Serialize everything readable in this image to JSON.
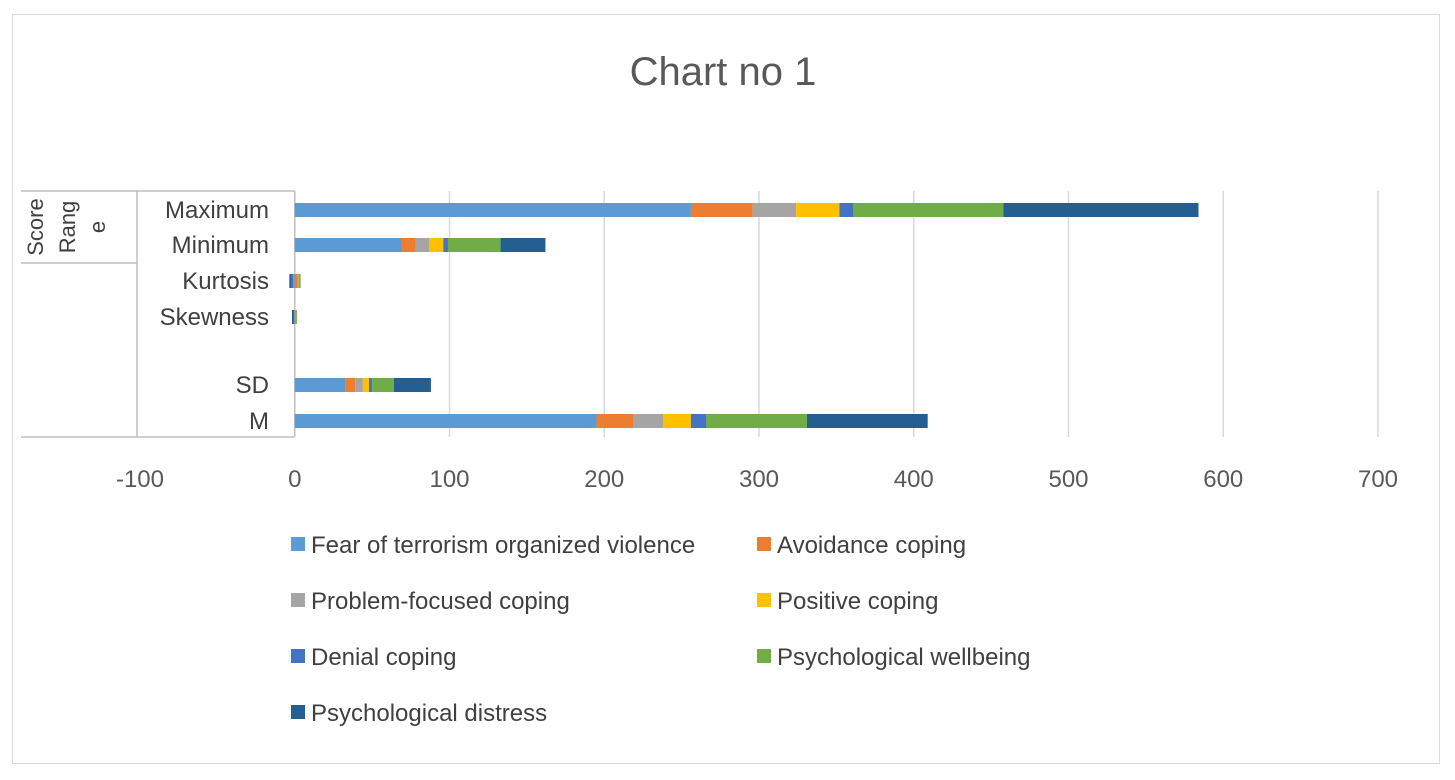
{
  "chart_data": {
    "type": "bar",
    "orientation": "horizontal",
    "stacked": true,
    "title": "Chart  no 1",
    "xlabel": "",
    "ylabel": "",
    "xlim": [
      -100,
      700
    ],
    "xticks": [
      -100,
      0,
      100,
      200,
      300,
      400,
      500,
      600,
      700
    ],
    "grid": "vertical",
    "legend_position": "bottom",
    "categories": [
      "M",
      "SD",
      "",
      "Skewness",
      "Kurtosis",
      "Minimum",
      "Maximum"
    ],
    "category_groups": [
      {
        "label_lines": [
          "Score",
          "Rang",
          "e"
        ],
        "members": [
          "Minimum",
          "Maximum"
        ]
      }
    ],
    "series": [
      {
        "name": "Fear of terrorism organized violence",
        "color": "#5B9BD5",
        "values": [
          195,
          33,
          null,
          -1,
          -1,
          69,
          256
        ]
      },
      {
        "name": "Avoidance coping",
        "color": "#ED7D31",
        "values": [
          24,
          6,
          null,
          0.2,
          2,
          9,
          40
        ]
      },
      {
        "name": "Problem-focused coping",
        "color": "#A5A5A5",
        "values": [
          19,
          5,
          null,
          0.1,
          0.5,
          9,
          28
        ]
      },
      {
        "name": "Positive coping",
        "color": "#FFC000",
        "values": [
          18,
          4,
          null,
          0.1,
          0.3,
          9,
          28
        ]
      },
      {
        "name": "Denial coping",
        "color": "#4472C4",
        "values": [
          10,
          2,
          null,
          -0.3,
          -2,
          3,
          9
        ]
      },
      {
        "name": "Psychological wellbeing",
        "color": "#70AD47",
        "values": [
          65,
          14,
          null,
          0.1,
          0.3,
          34,
          97
        ]
      },
      {
        "name": "Psychological distress",
        "color": "#255E91",
        "values": [
          78,
          24,
          null,
          -0.5,
          -0.5,
          29,
          126
        ]
      }
    ]
  }
}
